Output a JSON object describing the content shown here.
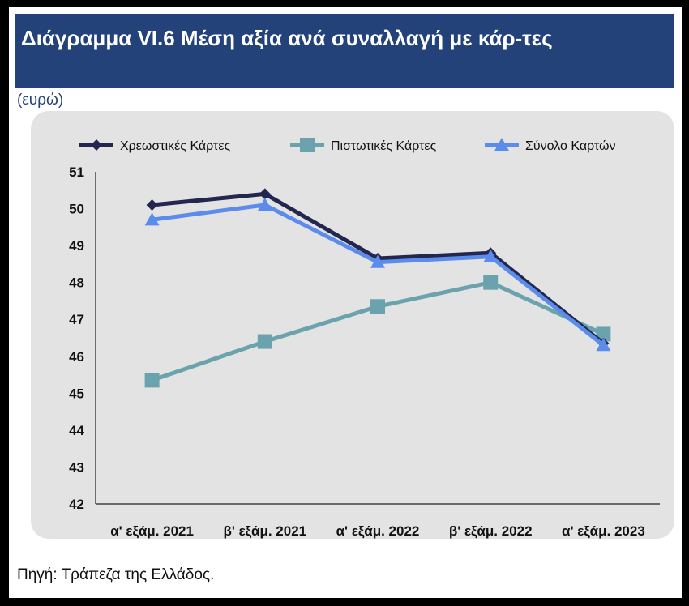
{
  "header": {
    "title": "Διάγραμμα VI.6 Μέση αξία ανά συναλλαγή με κάρ-τες"
  },
  "unit_label": "(ευρώ)",
  "source_note": "Πηγή: Τράπεζα της Ελλάδος.",
  "colors": {
    "title_bar": "#23427a",
    "chart_background": "#e3e3e3"
  },
  "chart_data": {
    "type": "line",
    "categories": [
      "α' εξάμ. 2021",
      "β' εξάμ. 2021",
      "α' εξάμ. 2022",
      "β' εξάμ. 2022",
      "α' εξάμ. 2023"
    ],
    "ylim": [
      42,
      51
    ],
    "yticks": [
      42,
      43,
      44,
      45,
      46,
      47,
      48,
      49,
      50,
      51
    ],
    "grid": false,
    "legend_position": "top",
    "series": [
      {
        "name": "Χρεωστικές Κάρτες",
        "values": [
          50.1,
          50.4,
          48.65,
          48.8,
          46.35
        ],
        "color": "#23264f",
        "marker": "diamond"
      },
      {
        "name": "Πιστωτικές Κάρτες",
        "values": [
          45.35,
          46.4,
          47.35,
          48.0,
          46.6
        ],
        "color": "#6aa3ad",
        "marker": "square"
      },
      {
        "name": "Σύνολο Καρτών",
        "values": [
          49.7,
          50.1,
          48.55,
          48.7,
          46.3
        ],
        "color": "#5b8cec",
        "marker": "triangle"
      }
    ]
  }
}
